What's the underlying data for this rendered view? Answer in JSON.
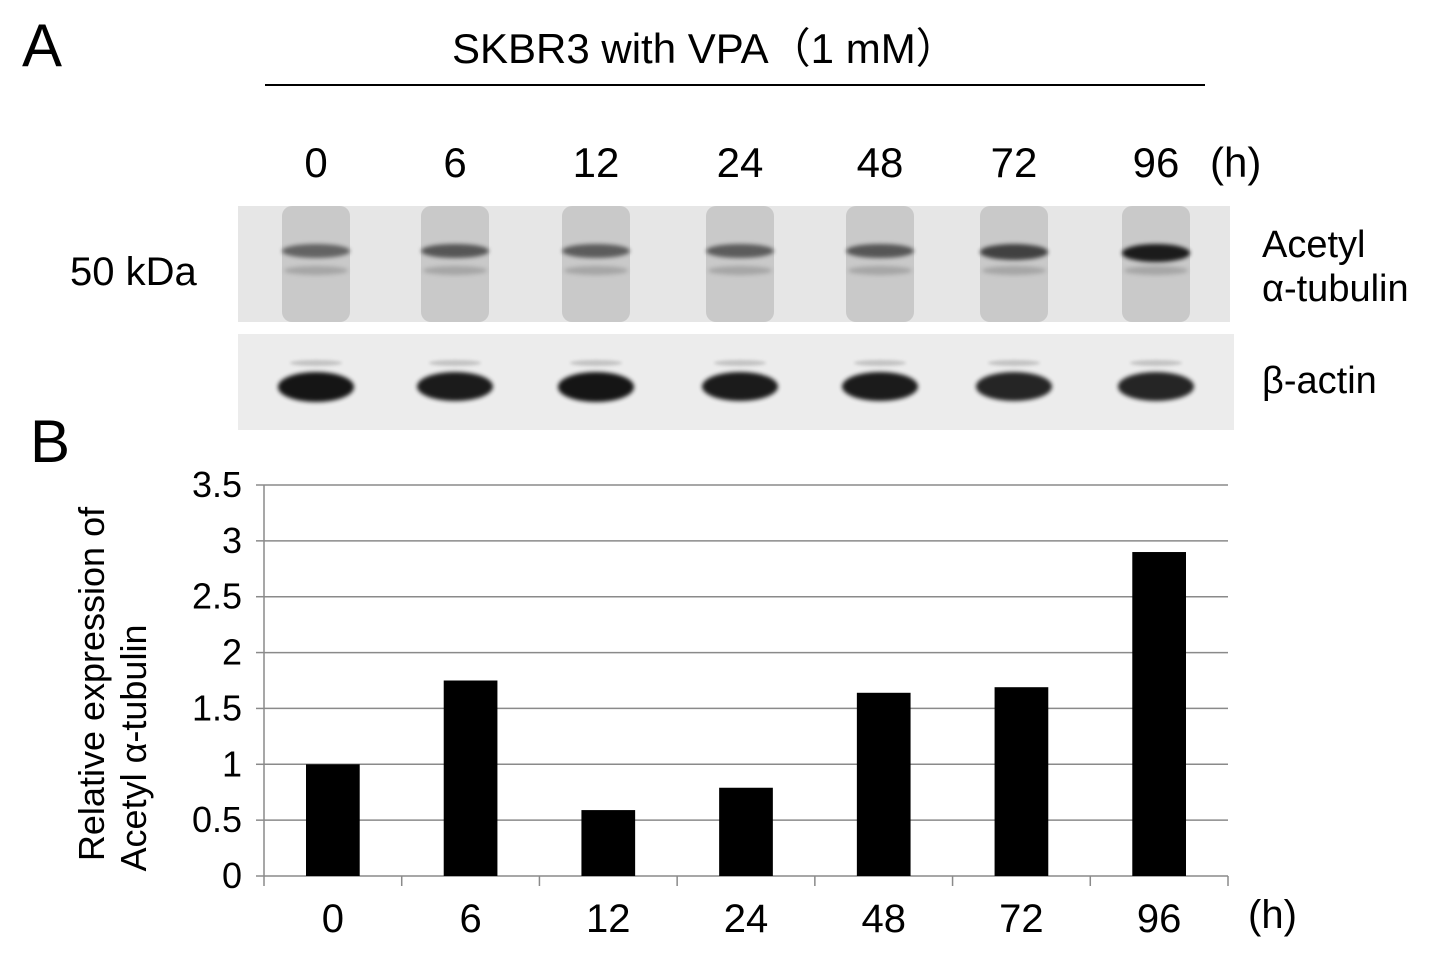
{
  "panel_a": {
    "letter": "A",
    "title": "SKBR3 with  VPA（1 mM）",
    "lanes": [
      "0",
      "6",
      "12",
      "24",
      "48",
      "72",
      "96"
    ],
    "time_unit": "(h)",
    "mw_marker": "50 kDa",
    "protein_1_line1": "Acetyl",
    "protein_1_line2": "α-tubulin",
    "protein_2": "β-actin",
    "acetyl_band_intensity": [
      0.45,
      0.55,
      0.5,
      0.5,
      0.55,
      0.7,
      0.95
    ],
    "actin_band_intensity": [
      0.95,
      0.92,
      0.95,
      0.92,
      0.92,
      0.88,
      0.88
    ]
  },
  "panel_b": {
    "letter": "B"
  },
  "chart_data": {
    "type": "bar",
    "categories": [
      "0",
      "6",
      "12",
      "24",
      "48",
      "72",
      "96"
    ],
    "values": [
      1.0,
      1.75,
      0.59,
      0.79,
      1.64,
      1.69,
      2.9
    ],
    "ylabel_line1": "Relative expression of",
    "ylabel_line2": "Acetyl α-tubulin",
    "xlabel": "(h)",
    "ylim": [
      0,
      3.5
    ],
    "yticks": [
      "0",
      "0.5",
      "1",
      "1.5",
      "2",
      "2.5",
      "3",
      "3.5"
    ],
    "bar_color": "#000000",
    "grid": true
  }
}
